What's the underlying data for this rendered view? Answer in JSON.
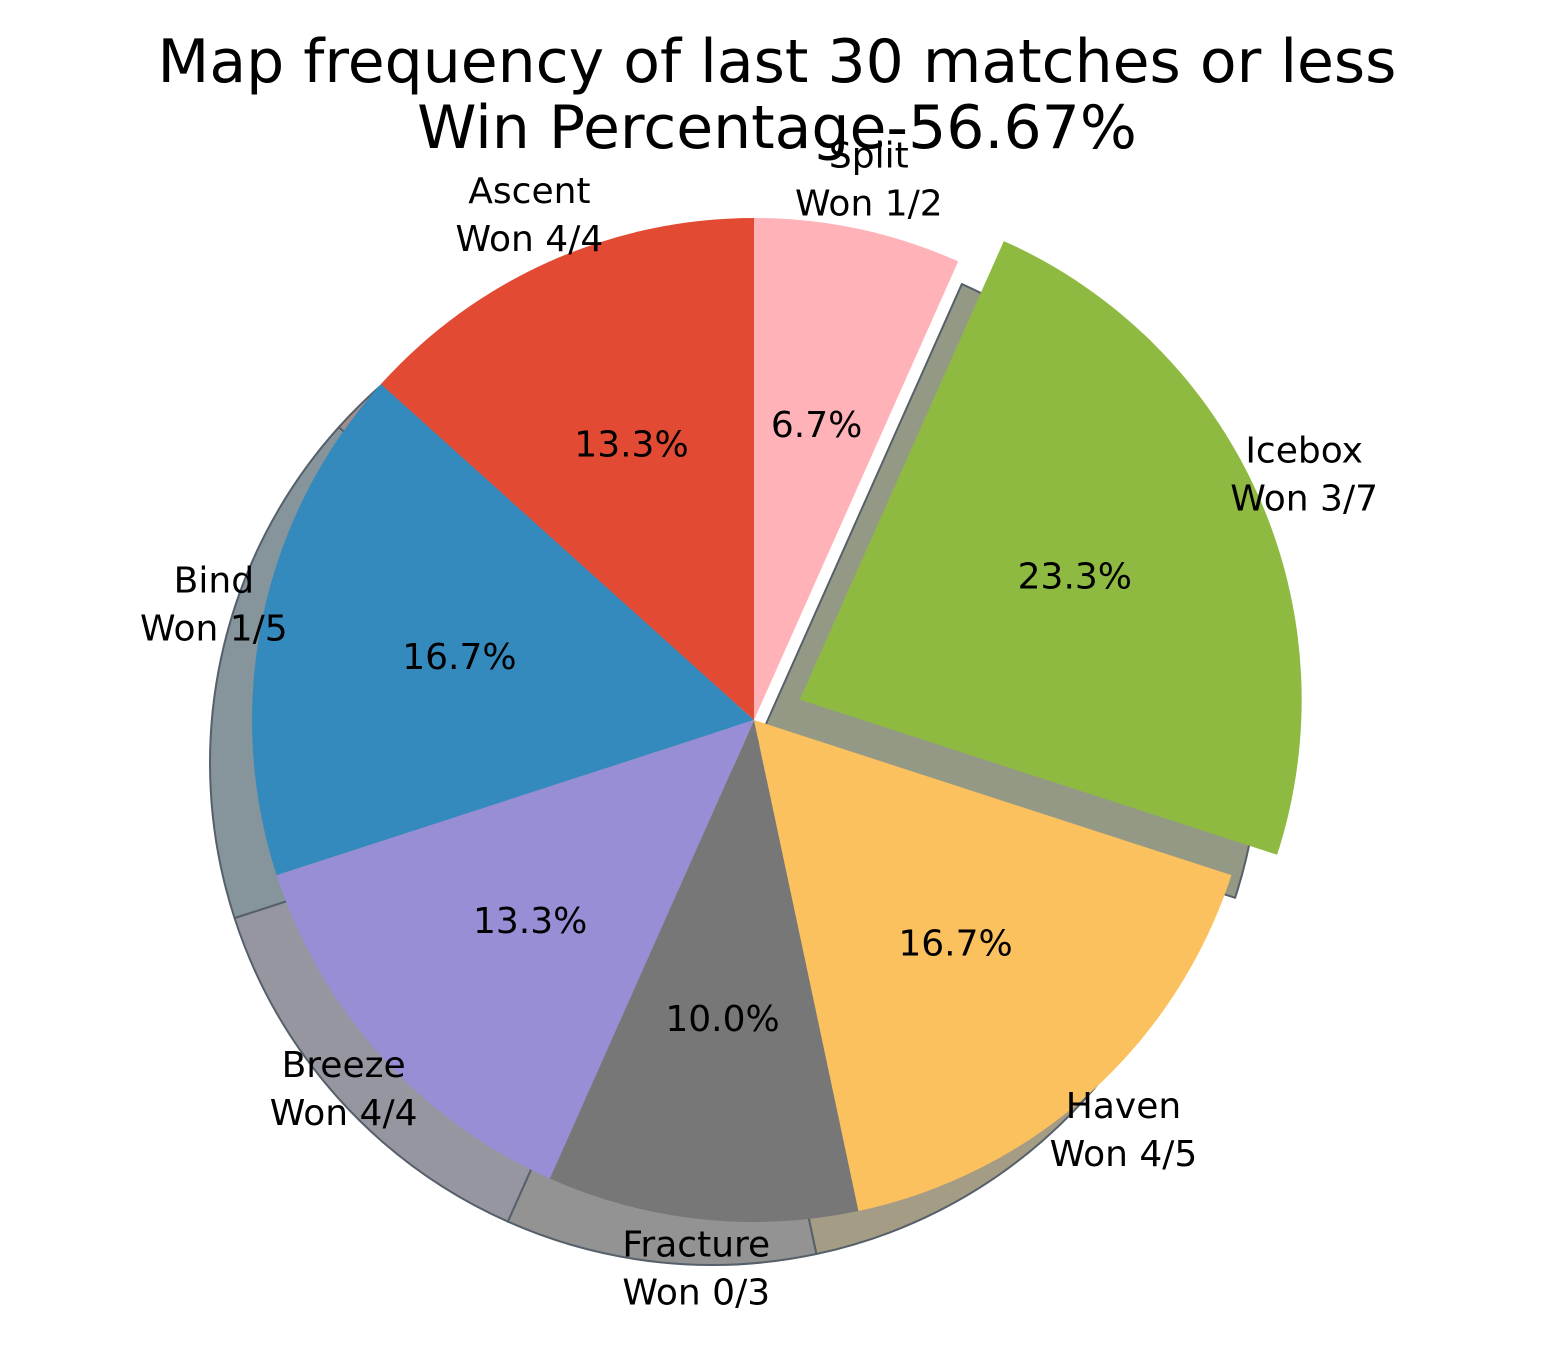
{
  "chart_data": {
    "type": "pie",
    "title_lines": [
      "Map frequency of last 30 matches or less",
      "Win Percentage-56.67%"
    ],
    "slices": [
      {
        "label": "Split",
        "sublabel": "Won 1/2",
        "value": 2,
        "pct_label": "6.7%",
        "color": "#ffb3b8",
        "shadow": "#b3b3b3"
      },
      {
        "label": "Icebox",
        "sublabel": "Won 3/7",
        "value": 7,
        "pct_label": "23.3%",
        "color": "#8eba42",
        "shadow": "#949986",
        "explode": true
      },
      {
        "label": "Haven",
        "sublabel": "Won 4/5",
        "value": 5,
        "pct_label": "16.7%",
        "color": "#fbc15e",
        "shadow": "#a59c85"
      },
      {
        "label": "Fracture",
        "sublabel": "Won 0/3",
        "value": 3,
        "pct_label": "10.0%",
        "color": "#777777",
        "shadow": "#939393"
      },
      {
        "label": "Breeze",
        "sublabel": "Won 4/4",
        "value": 4,
        "pct_label": "13.3%",
        "color": "#988ed5",
        "shadow": "#9696a0"
      },
      {
        "label": "Bind",
        "sublabel": "Won 1/5",
        "value": 5,
        "pct_label": "16.7%",
        "color": "#348abd",
        "shadow": "#86949b"
      },
      {
        "label": "Ascent",
        "sublabel": "Won 4/4",
        "value": 4,
        "pct_label": "13.3%",
        "color": "#e24a33",
        "shadow": "#a38d8a"
      }
    ],
    "start": "top",
    "direction": "clockwise",
    "shadow": true
  }
}
